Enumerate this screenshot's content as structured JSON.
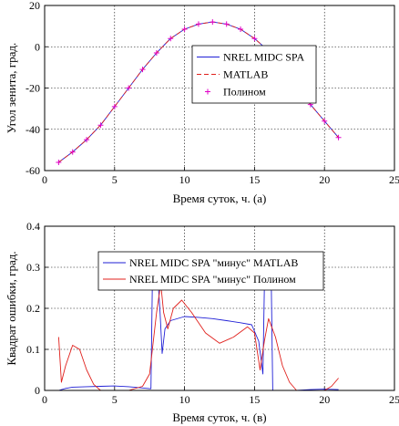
{
  "colors": {
    "spa": "#1f1fd6",
    "matlab": "#e0201c",
    "poly": "#e000c8",
    "grid": "#000000",
    "axes": "#000000"
  },
  "chart_data": [
    {
      "id": "a",
      "type": "line",
      "xlabel": "Время суток, ч. (а)",
      "ylabel": "Угол зенита, град.",
      "xlim": [
        0,
        25
      ],
      "ylim": [
        -60,
        20
      ],
      "xticks": [
        0,
        5,
        10,
        15,
        20,
        25
      ],
      "yticks": [
        -60,
        -40,
        -20,
        0,
        20
      ],
      "grid": true,
      "legend_position": "right",
      "series": [
        {
          "name": "NREL MIDC SPA",
          "style": "solid",
          "color": "#1f1fd6",
          "x": [
            1,
            2,
            3,
            4,
            5,
            6,
            7,
            8,
            9,
            10,
            11,
            12,
            13,
            14,
            15,
            16,
            17,
            18,
            19,
            20,
            21
          ],
          "y": [
            -56,
            -51,
            -45,
            -38,
            -29,
            -20,
            -11,
            -3,
            4,
            8.5,
            11,
            12,
            11,
            8.5,
            4,
            -2,
            -10,
            -19,
            -28,
            -36,
            -44
          ]
        },
        {
          "name": "MATLAB",
          "style": "dashed",
          "color": "#e0201c",
          "x": [
            1,
            2,
            3,
            4,
            5,
            6,
            7,
            8,
            9,
            10,
            11,
            12,
            13,
            14,
            15,
            16,
            17,
            18,
            19,
            20,
            21
          ],
          "y": [
            -56,
            -51,
            -45,
            -38,
            -29,
            -20,
            -11,
            -3,
            4,
            8.5,
            11,
            12,
            11,
            8.5,
            4,
            -2,
            -10,
            -19,
            -28,
            -36,
            -44
          ]
        },
        {
          "name": "Полином",
          "style": "markers",
          "color": "#e000c8",
          "x": [
            1,
            2,
            3,
            4,
            5,
            6,
            7,
            8,
            9,
            10,
            11,
            12,
            13,
            14,
            15,
            16,
            17,
            18,
            19,
            20,
            21
          ],
          "y": [
            -56,
            -51,
            -45,
            -38,
            -29,
            -20,
            -11,
            -3,
            4,
            8.5,
            11,
            12,
            11,
            8.5,
            4,
            -2,
            -10,
            -19,
            -28,
            -36,
            -44
          ]
        }
      ]
    },
    {
      "id": "v",
      "type": "line",
      "xlabel": "Время суток, ч. (в)",
      "ylabel": "Квадрат ошибки, град.",
      "xlim": [
        0,
        25
      ],
      "ylim": [
        0,
        0.4
      ],
      "xticks": [
        0,
        5,
        10,
        15,
        20,
        25
      ],
      "yticks": [
        0,
        0.1,
        0.2,
        0.3,
        0.4
      ],
      "grid": true,
      "legend_position": "top",
      "series": [
        {
          "name": "NREL MIDC SPA \"минус\" MATLAB",
          "style": "solid",
          "color": "#1f1fd6",
          "x": [
            1,
            1.5,
            2,
            3,
            4,
            5,
            6,
            7,
            7.6,
            7.7,
            8.1,
            8.25,
            8.4,
            8.6,
            9,
            10,
            11,
            12,
            13,
            14,
            14.8,
            15.3,
            15.6,
            15.7,
            16,
            16.2,
            16.3,
            17,
            18,
            19,
            20,
            21
          ],
          "y": [
            0.0,
            0.005,
            0.008,
            0.009,
            0.01,
            0.011,
            0.009,
            0.006,
            0.004,
            0.27,
            0.27,
            0.19,
            0.09,
            0.15,
            0.17,
            0.18,
            0.178,
            0.175,
            0.17,
            0.165,
            0.16,
            0.12,
            0.04,
            0.25,
            0.26,
            0.26,
            0.0,
            0.0,
            0.0,
            0.002,
            0.003,
            0.002
          ]
        },
        {
          "name": "NREL MIDC SPA \"минус\" Полином",
          "style": "solid",
          "color": "#e0201c",
          "x": [
            1,
            1.2,
            1.5,
            2,
            2.5,
            3,
            3.5,
            4,
            5,
            6,
            7,
            7.5,
            8,
            8.3,
            8.5,
            8.8,
            9.2,
            9.8,
            10.5,
            11.5,
            12.5,
            13.5,
            14.5,
            15,
            15.4,
            15.7,
            16,
            16.5,
            17,
            17.5,
            18,
            19,
            20,
            20.5,
            21
          ],
          "y": [
            0.13,
            0.02,
            0.06,
            0.11,
            0.1,
            0.05,
            0.015,
            0.0,
            0.0,
            0.0,
            0.01,
            0.04,
            0.19,
            0.26,
            0.19,
            0.15,
            0.2,
            0.22,
            0.19,
            0.14,
            0.115,
            0.13,
            0.155,
            0.14,
            0.05,
            0.12,
            0.175,
            0.13,
            0.06,
            0.02,
            0.0,
            0.0,
            0.0,
            0.01,
            0.03
          ]
        }
      ]
    }
  ]
}
